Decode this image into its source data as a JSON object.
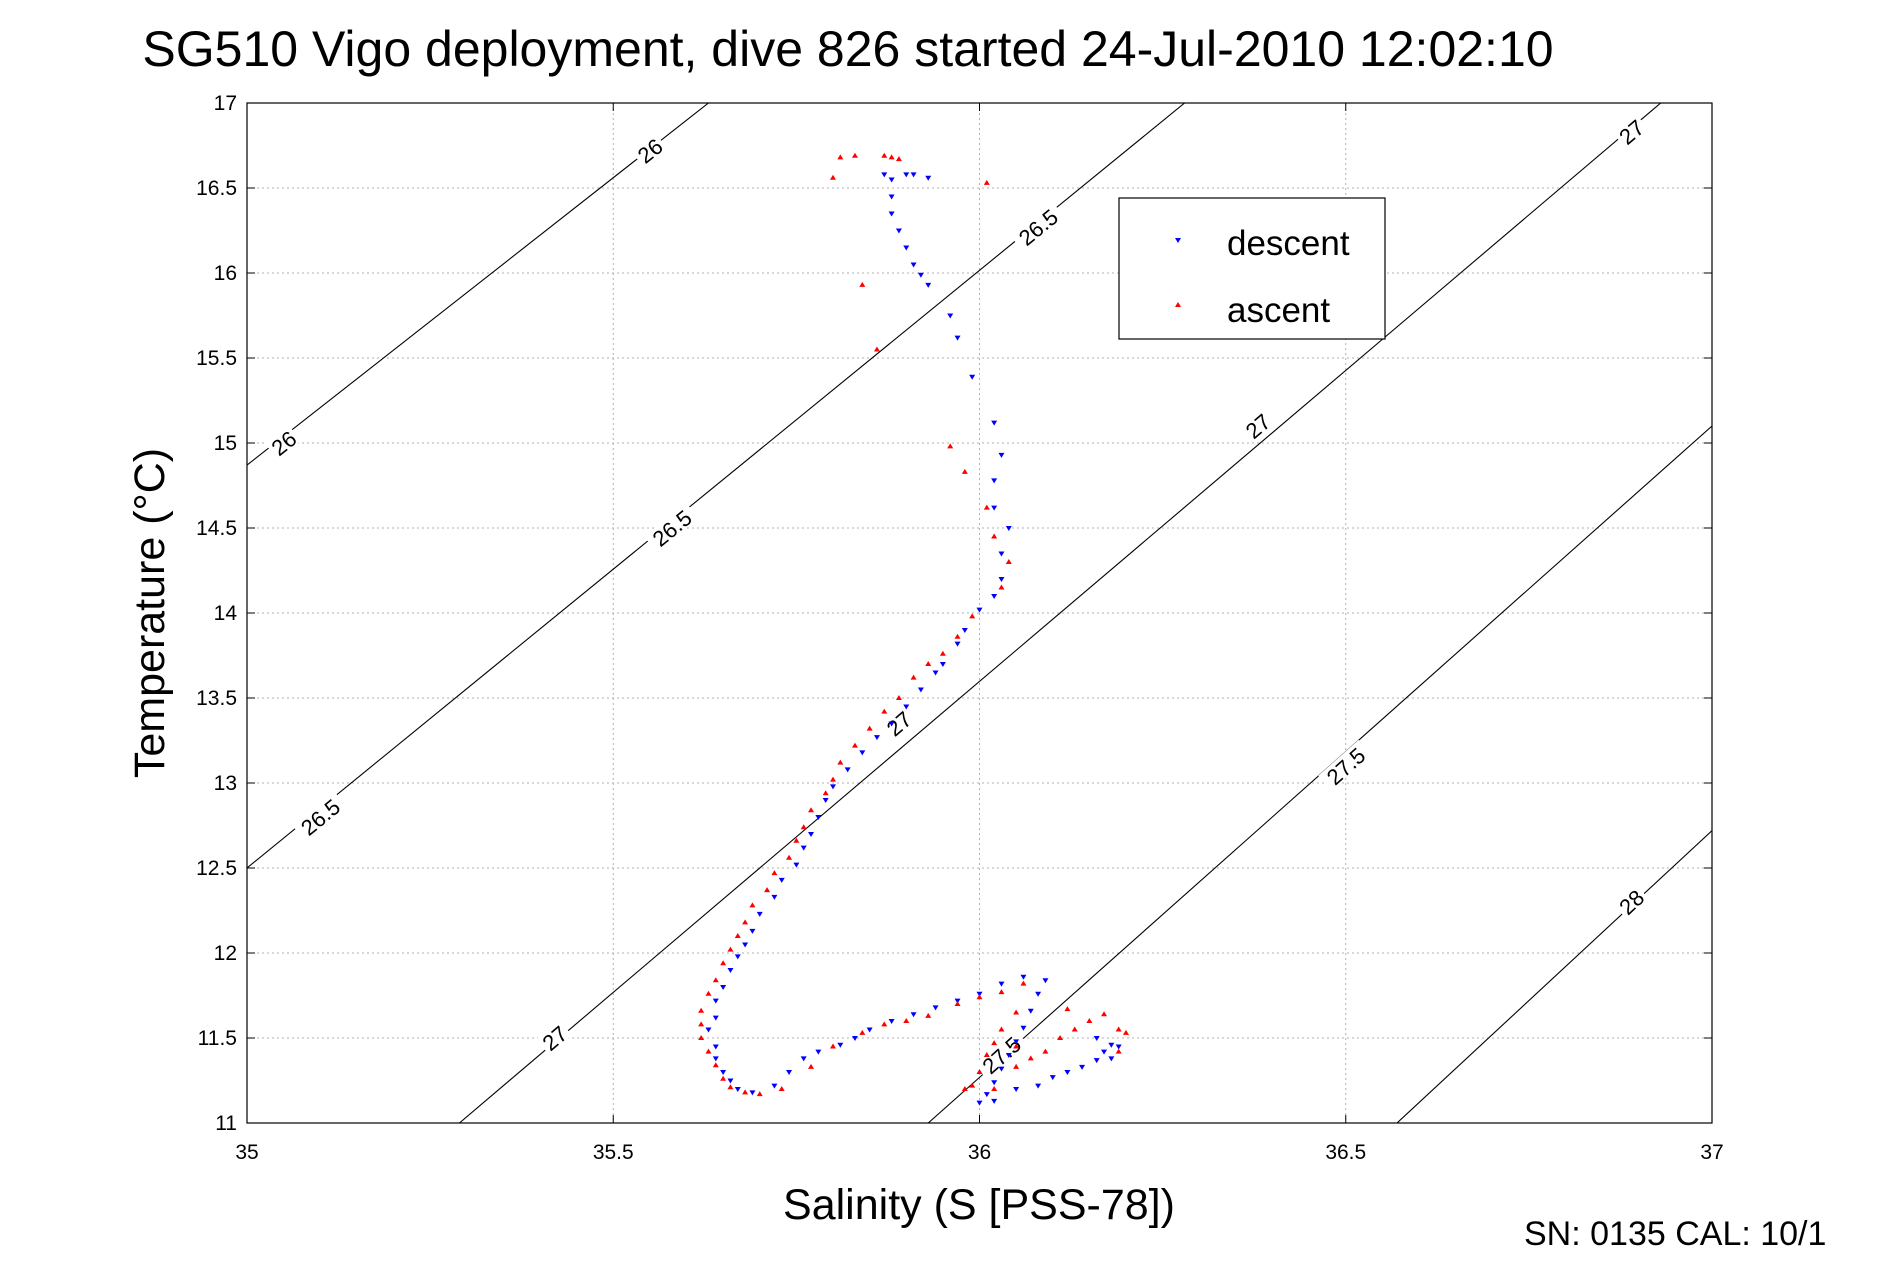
{
  "chart_data": {
    "type": "scatter",
    "title": "SG510 Vigo deployment, dive 826 started 24-Jul-2010 12:02:10",
    "xlabel": "Salinity (S [PSS-78])",
    "ylabel": "Temperature (°C)",
    "xlim": [
      35,
      37
    ],
    "ylim": [
      11,
      17
    ],
    "xticks": [
      35,
      35.5,
      36,
      36.5,
      37
    ],
    "xtick_labels": [
      "35",
      "35.5",
      "36",
      "36.5",
      "37"
    ],
    "yticks": [
      11,
      11.5,
      12,
      12.5,
      13,
      13.5,
      14,
      14.5,
      15,
      15.5,
      16,
      16.5,
      17
    ],
    "ytick_labels": [
      "11",
      "11.5",
      "12",
      "12.5",
      "13",
      "13.5",
      "14",
      "14.5",
      "15",
      "15.5",
      "16",
      "16.5",
      "17"
    ],
    "grid": true,
    "legend_position": "top-right",
    "density_contours": [
      {
        "level": "26",
        "points": [
          [
            35.0,
            14.87
          ],
          [
            35.63,
            17.0
          ]
        ],
        "labels": [
          {
            "text": "26",
            "x": 35.05,
            "y": 15.0
          },
          {
            "text": "26",
            "x": 35.55,
            "y": 16.72
          }
        ]
      },
      {
        "level": "26.5",
        "points": [
          [
            35.0,
            12.5
          ],
          [
            36.28,
            17.0
          ]
        ],
        "labels": [
          {
            "text": "26.5",
            "x": 35.1,
            "y": 12.8
          },
          {
            "text": "26.5",
            "x": 35.58,
            "y": 14.5
          },
          {
            "text": "26.5",
            "x": 36.08,
            "y": 16.27
          }
        ]
      },
      {
        "level": "27",
        "points": [
          [
            35.29,
            11.0
          ],
          [
            36.93,
            17.0
          ]
        ],
        "labels": [
          {
            "text": "27",
            "x": 35.42,
            "y": 11.5
          },
          {
            "text": "27",
            "x": 35.89,
            "y": 13.35
          },
          {
            "text": "27",
            "x": 36.38,
            "y": 15.1
          },
          {
            "text": "27",
            "x": 36.89,
            "y": 16.83
          }
        ]
      },
      {
        "level": "27.5",
        "points": [
          [
            35.93,
            11.0
          ],
          [
            37.0,
            15.1
          ]
        ],
        "labels": [
          {
            "text": "27.5",
            "x": 36.03,
            "y": 11.4
          },
          {
            "text": "27.5",
            "x": 36.5,
            "y": 13.1
          }
        ]
      },
      {
        "level": "28",
        "points": [
          [
            36.57,
            11.0
          ],
          [
            37.0,
            12.72
          ]
        ],
        "labels": [
          {
            "text": "28",
            "x": 36.89,
            "y": 12.3
          }
        ]
      }
    ],
    "series": [
      {
        "name": "descent",
        "color": "#0000ff",
        "marker": "triangle-down",
        "points": [
          [
            35.87,
            16.58
          ],
          [
            35.88,
            16.55
          ],
          [
            35.9,
            16.58
          ],
          [
            35.91,
            16.58
          ],
          [
            35.93,
            16.56
          ],
          [
            35.88,
            16.45
          ],
          [
            35.88,
            16.35
          ],
          [
            35.89,
            16.25
          ],
          [
            35.9,
            16.15
          ],
          [
            35.91,
            16.05
          ],
          [
            35.92,
            15.99
          ],
          [
            35.93,
            15.93
          ],
          [
            35.96,
            15.75
          ],
          [
            35.97,
            15.62
          ],
          [
            35.99,
            15.39
          ],
          [
            36.02,
            15.12
          ],
          [
            36.03,
            14.93
          ],
          [
            36.02,
            14.78
          ],
          [
            36.02,
            14.62
          ],
          [
            36.04,
            14.5
          ],
          [
            36.03,
            14.35
          ],
          [
            36.03,
            14.2
          ],
          [
            36.02,
            14.1
          ],
          [
            36.0,
            14.02
          ],
          [
            35.98,
            13.9
          ],
          [
            35.97,
            13.82
          ],
          [
            35.95,
            13.7
          ],
          [
            35.94,
            13.65
          ],
          [
            35.92,
            13.55
          ],
          [
            35.9,
            13.45
          ],
          [
            35.88,
            13.35
          ],
          [
            35.86,
            13.27
          ],
          [
            35.84,
            13.18
          ],
          [
            35.82,
            13.08
          ],
          [
            35.8,
            12.98
          ],
          [
            35.79,
            12.9
          ],
          [
            35.78,
            12.8
          ],
          [
            35.77,
            12.7
          ],
          [
            35.76,
            12.62
          ],
          [
            35.75,
            12.52
          ],
          [
            35.73,
            12.43
          ],
          [
            35.72,
            12.33
          ],
          [
            35.7,
            12.23
          ],
          [
            35.69,
            12.13
          ],
          [
            35.68,
            12.05
          ],
          [
            35.67,
            11.98
          ],
          [
            35.66,
            11.9
          ],
          [
            35.65,
            11.8
          ],
          [
            35.64,
            11.72
          ],
          [
            35.64,
            11.62
          ],
          [
            35.63,
            11.55
          ],
          [
            35.64,
            11.45
          ],
          [
            35.64,
            11.38
          ],
          [
            35.65,
            11.3
          ],
          [
            35.66,
            11.25
          ],
          [
            35.67,
            11.2
          ],
          [
            35.69,
            11.18
          ],
          [
            35.72,
            11.22
          ],
          [
            35.74,
            11.3
          ],
          [
            35.76,
            11.38
          ],
          [
            35.78,
            11.42
          ],
          [
            35.81,
            11.46
          ],
          [
            35.83,
            11.5
          ],
          [
            35.85,
            11.55
          ],
          [
            35.88,
            11.6
          ],
          [
            35.91,
            11.64
          ],
          [
            35.94,
            11.68
          ],
          [
            35.97,
            11.72
          ],
          [
            36.0,
            11.76
          ],
          [
            36.03,
            11.82
          ],
          [
            36.06,
            11.86
          ],
          [
            36.09,
            11.84
          ],
          [
            36.08,
            11.76
          ],
          [
            36.07,
            11.66
          ],
          [
            36.06,
            11.56
          ],
          [
            36.05,
            11.48
          ],
          [
            36.04,
            11.4
          ],
          [
            36.03,
            11.32
          ],
          [
            36.02,
            11.24
          ],
          [
            36.01,
            11.17
          ],
          [
            36.0,
            11.12
          ],
          [
            36.02,
            11.13
          ],
          [
            36.05,
            11.2
          ],
          [
            36.08,
            11.22
          ],
          [
            36.1,
            11.27
          ],
          [
            36.12,
            11.3
          ],
          [
            36.14,
            11.33
          ],
          [
            36.16,
            11.37
          ],
          [
            36.17,
            11.42
          ],
          [
            36.18,
            11.46
          ],
          [
            36.16,
            11.5
          ],
          [
            36.18,
            11.38
          ],
          [
            36.19,
            11.45
          ]
        ]
      },
      {
        "name": "ascent",
        "color": "#ff0000",
        "marker": "triangle-up",
        "points": [
          [
            35.81,
            16.68
          ],
          [
            35.8,
            16.56
          ],
          [
            35.83,
            16.69
          ],
          [
            35.87,
            16.69
          ],
          [
            35.88,
            16.68
          ],
          [
            35.89,
            16.67
          ],
          [
            35.84,
            15.93
          ],
          [
            35.86,
            15.55
          ],
          [
            36.01,
            16.53
          ],
          [
            35.96,
            14.98
          ],
          [
            35.98,
            14.83
          ],
          [
            36.01,
            14.62
          ],
          [
            36.02,
            14.45
          ],
          [
            36.04,
            14.3
          ],
          [
            36.03,
            14.15
          ],
          [
            35.99,
            13.98
          ],
          [
            35.97,
            13.86
          ],
          [
            35.95,
            13.76
          ],
          [
            35.93,
            13.7
          ],
          [
            35.91,
            13.62
          ],
          [
            35.89,
            13.5
          ],
          [
            35.87,
            13.42
          ],
          [
            35.85,
            13.32
          ],
          [
            35.83,
            13.22
          ],
          [
            35.81,
            13.12
          ],
          [
            35.8,
            13.02
          ],
          [
            35.79,
            12.94
          ],
          [
            35.77,
            12.84
          ],
          [
            35.76,
            12.74
          ],
          [
            35.75,
            12.66
          ],
          [
            35.74,
            12.56
          ],
          [
            35.72,
            12.47
          ],
          [
            35.71,
            12.37
          ],
          [
            35.69,
            12.28
          ],
          [
            35.68,
            12.18
          ],
          [
            35.67,
            12.1
          ],
          [
            35.66,
            12.02
          ],
          [
            35.65,
            11.94
          ],
          [
            35.64,
            11.84
          ],
          [
            35.63,
            11.76
          ],
          [
            35.62,
            11.66
          ],
          [
            35.62,
            11.58
          ],
          [
            35.62,
            11.5
          ],
          [
            35.63,
            11.42
          ],
          [
            35.64,
            11.34
          ],
          [
            35.65,
            11.26
          ],
          [
            35.66,
            11.21
          ],
          [
            35.68,
            11.18
          ],
          [
            35.7,
            11.17
          ],
          [
            35.73,
            11.2
          ],
          [
            35.77,
            11.33
          ],
          [
            35.8,
            11.45
          ],
          [
            35.84,
            11.53
          ],
          [
            35.87,
            11.58
          ],
          [
            35.9,
            11.6
          ],
          [
            35.93,
            11.63
          ],
          [
            35.97,
            11.7
          ],
          [
            36.0,
            11.74
          ],
          [
            36.03,
            11.77
          ],
          [
            36.06,
            11.82
          ],
          [
            36.05,
            11.65
          ],
          [
            36.03,
            11.55
          ],
          [
            36.02,
            11.47
          ],
          [
            36.01,
            11.4
          ],
          [
            36.0,
            11.3
          ],
          [
            35.99,
            11.22
          ],
          [
            35.98,
            11.2
          ],
          [
            36.02,
            11.2
          ],
          [
            36.05,
            11.33
          ],
          [
            36.07,
            11.38
          ],
          [
            36.09,
            11.42
          ],
          [
            36.11,
            11.5
          ],
          [
            36.13,
            11.55
          ],
          [
            36.15,
            11.6
          ],
          [
            36.17,
            11.64
          ],
          [
            36.19,
            11.55
          ],
          [
            36.2,
            11.53
          ],
          [
            36.19,
            11.42
          ],
          [
            36.12,
            11.67
          ],
          [
            36.05,
            11.45
          ]
        ]
      }
    ]
  },
  "legend": {
    "descent": "descent",
    "ascent": "ascent"
  },
  "footer": {
    "sn_cal": "SN: 0135  CAL: 10/1"
  }
}
